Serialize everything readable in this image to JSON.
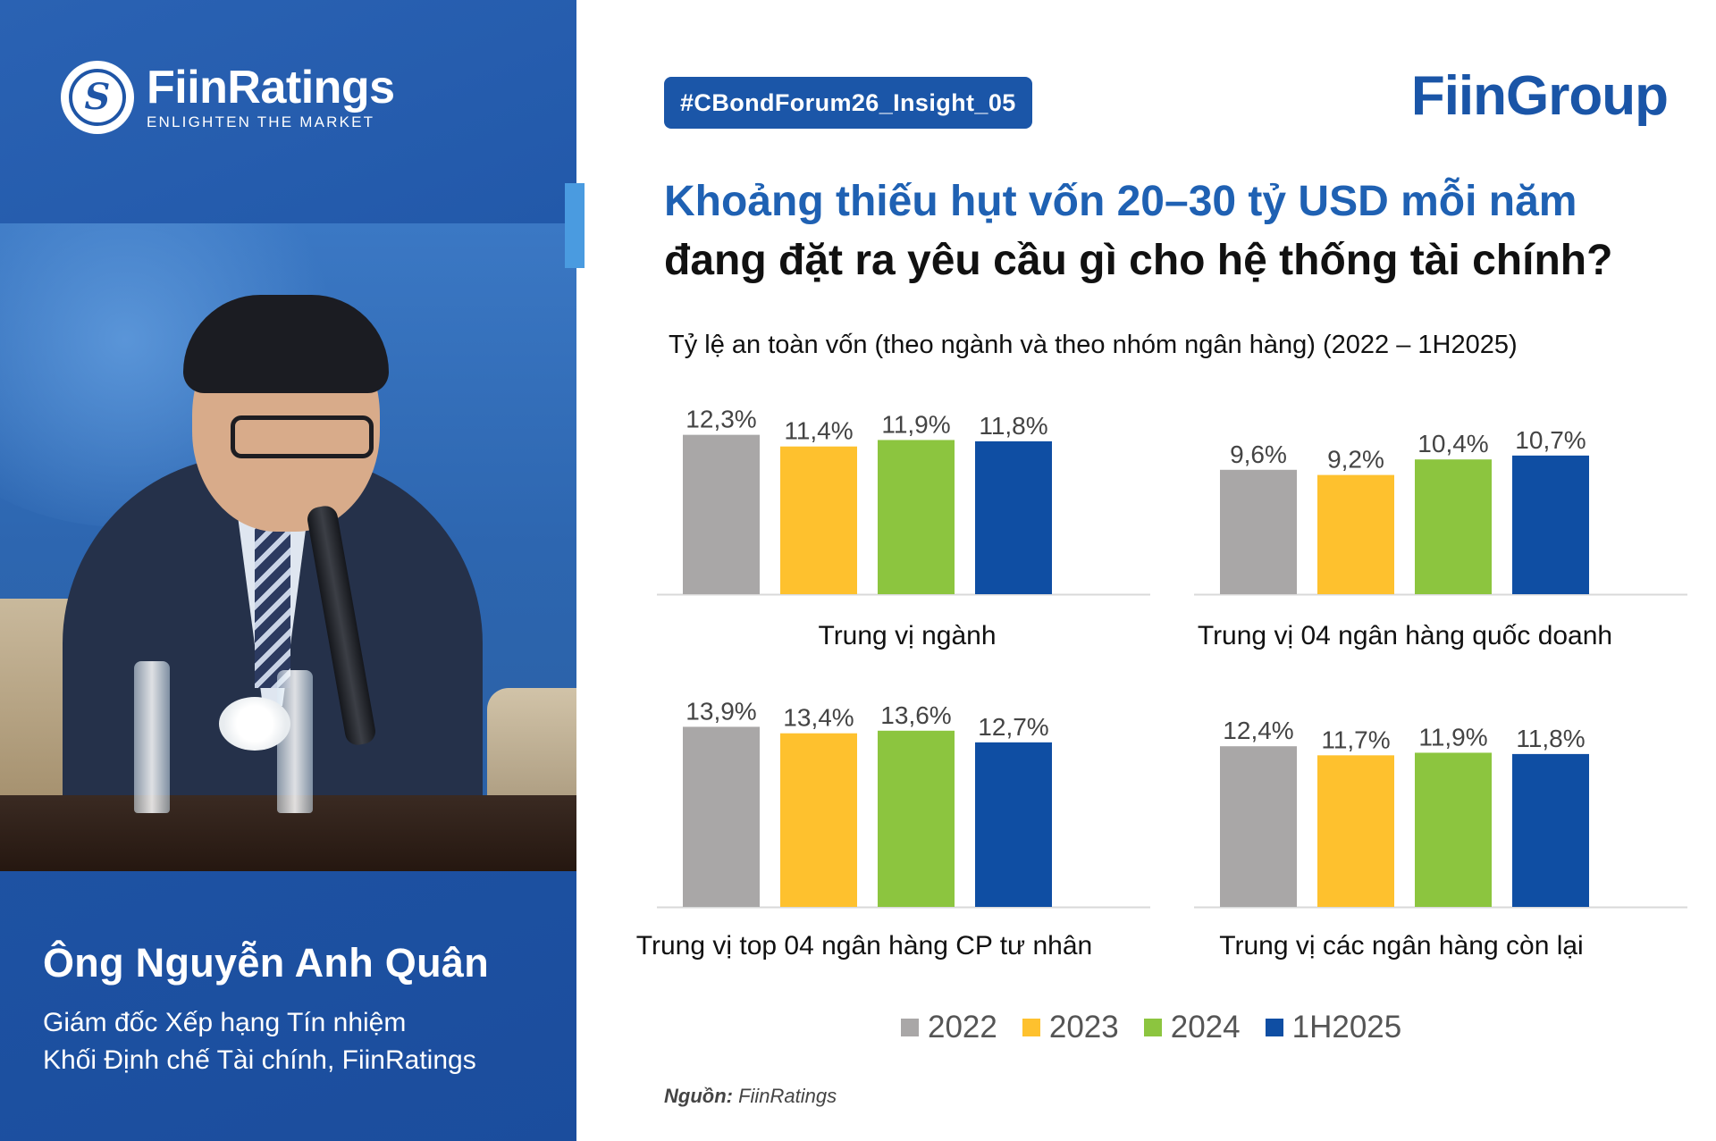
{
  "header": {
    "tag": "#CBondForum26_Insight_05",
    "brand": "FiinGroup",
    "title_line1": "Khoảng thiếu hụt vốn 20–30 tỷ USD mỗi năm",
    "title_line2": "đang đặt ra yêu cầu gì cho hệ thống tài chính?"
  },
  "left": {
    "logo_name": "FiinRatings",
    "logo_tagline": "ENLIGHTEN THE MARKET",
    "person_name": "Ông Nguyễn Anh Quân",
    "person_role_1": "Giám đốc Xếp hạng Tín nhiệm",
    "person_role_2": "Khối Định chế Tài chính, FiinRatings"
  },
  "chart_data": [
    {
      "type": "bar",
      "title": "Trung vị ngành",
      "categories": [
        "2022",
        "2023",
        "2024",
        "1H2025"
      ],
      "values": [
        12.3,
        11.4,
        11.9,
        11.8
      ],
      "labels": [
        "12,3%",
        "11,4%",
        "11,9%",
        "11,8%"
      ]
    },
    {
      "type": "bar",
      "title": "Trung vị 04 ngân hàng quốc doanh",
      "categories": [
        "2022",
        "2023",
        "2024",
        "1H2025"
      ],
      "values": [
        9.6,
        9.2,
        10.4,
        10.7
      ],
      "labels": [
        "9,6%",
        "9,2%",
        "10,4%",
        "10,7%"
      ]
    },
    {
      "type": "bar",
      "title": "Trung vị top 04 ngân hàng CP tư nhân",
      "categories": [
        "2022",
        "2023",
        "2024",
        "1H2025"
      ],
      "values": [
        13.9,
        13.4,
        13.6,
        12.7
      ],
      "labels": [
        "13,9%",
        "13,4%",
        "13,6%",
        "12,7%"
      ]
    },
    {
      "type": "bar",
      "title": "Trung vị các ngân hàng còn lại",
      "categories": [
        "2022",
        "2023",
        "2024",
        "1H2025"
      ],
      "values": [
        12.4,
        11.7,
        11.9,
        11.8
      ],
      "labels": [
        "12,4%",
        "11,7%",
        "11,9%",
        "11,8%"
      ]
    }
  ],
  "chart_meta": {
    "subtitle": "Tỷ lệ an toàn vốn (theo ngành và theo nhóm ngân hàng) (2022 – 1H2025)",
    "series_colors": [
      "#a9a7a7",
      "#fec12e",
      "#8cc53f",
      "#0f4ea3"
    ],
    "legend": [
      "2022",
      "2023",
      "2024",
      "1H2025"
    ],
    "grid": false,
    "legend_position": "bottom"
  },
  "source": {
    "label": "Nguồn:",
    "value": "FiinRatings"
  }
}
